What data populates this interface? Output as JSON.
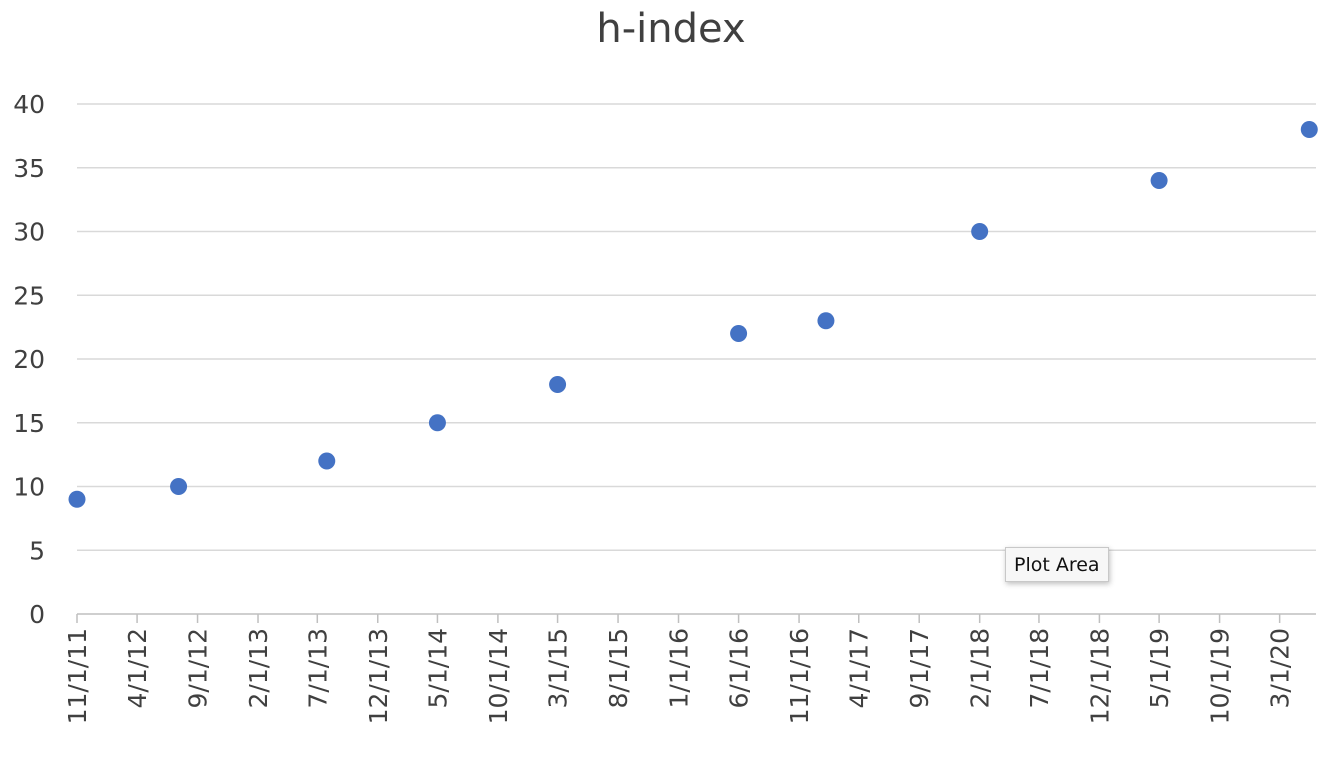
{
  "chart_data": {
    "type": "scatter",
    "title": "h-index",
    "xlabel": "",
    "ylabel": "",
    "ylim": [
      0,
      40
    ],
    "y_ticks": [
      0,
      5,
      10,
      15,
      20,
      25,
      30,
      35,
      40
    ],
    "x_tick_labels": [
      "11/1/11",
      "4/1/12",
      "9/1/12",
      "2/1/13",
      "7/1/13",
      "12/1/13",
      "5/1/14",
      "10/1/14",
      "3/1/15",
      "8/1/15",
      "1/1/16",
      "6/1/16",
      "11/1/16",
      "4/1/17",
      "9/1/17",
      "2/1/18",
      "7/1/18",
      "12/1/18",
      "5/1/19",
      "10/1/19",
      "3/1/20"
    ],
    "xlim": [
      "2011-11-01",
      "2020-06-01"
    ],
    "grid": true,
    "legend": "none",
    "marker_color": "#4472c4",
    "series": [
      {
        "points": [
          {
            "x": "2011-11-01",
            "y": 9
          },
          {
            "x": "2012-07-15",
            "y": 10
          },
          {
            "x": "2013-07-25",
            "y": 12
          },
          {
            "x": "2014-05-01",
            "y": 15
          },
          {
            "x": "2015-03-01",
            "y": 18
          },
          {
            "x": "2016-06-01",
            "y": 22
          },
          {
            "x": "2017-01-08",
            "y": 23
          },
          {
            "x": "2018-02-01",
            "y": 30
          },
          {
            "x": "2019-05-01",
            "y": 34
          },
          {
            "x": "2020-05-15",
            "y": 38
          }
        ]
      }
    ]
  },
  "tooltip": {
    "label": "Plot Area"
  }
}
